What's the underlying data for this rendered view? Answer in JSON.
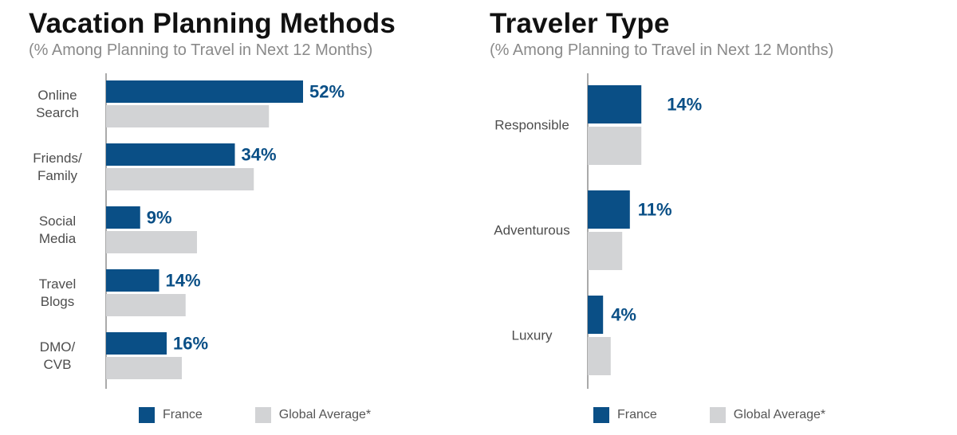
{
  "colors": {
    "france": "#0a4f86",
    "global": "#d2d3d5",
    "value_text": "#0a4f86"
  },
  "panels": [
    {
      "title": "Vacation Planning Methods",
      "subtitle": "(% Among Planning to Travel in Next 12 Months)",
      "legend": [
        "France",
        "Global Average*"
      ]
    },
    {
      "title": "Traveler Type",
      "subtitle": "(% Among Planning to Travel in Next 12 Months)",
      "legend": [
        "France",
        "Global Average*"
      ]
    }
  ],
  "chart_data": [
    {
      "type": "bar",
      "orientation": "horizontal",
      "title": "Vacation Planning Methods",
      "subtitle": "(% Among Planning to Travel in Next 12 Months)",
      "categories": [
        [
          "Online",
          "Search"
        ],
        [
          "Friends/",
          "Family"
        ],
        [
          "Social",
          "Media"
        ],
        [
          "Travel",
          "Blogs"
        ],
        [
          "DMO/",
          "CVB"
        ]
      ],
      "series": [
        {
          "name": "France",
          "values": [
            52,
            34,
            9,
            14,
            16
          ],
          "labels": [
            "52%",
            "34%",
            "9%",
            "14%",
            "16%"
          ]
        },
        {
          "name": "Global Average*",
          "values": [
            43,
            39,
            24,
            21,
            20
          ]
        }
      ],
      "xlim": [
        0,
        60
      ],
      "grid": false,
      "legend_position": "bottom"
    },
    {
      "type": "bar",
      "orientation": "horizontal",
      "title": "Traveler Type",
      "subtitle": "(% Among Planning to Travel in Next 12 Months)",
      "categories": [
        [
          "Responsible"
        ],
        [
          "Adventurous"
        ],
        [
          "Luxury"
        ]
      ],
      "series": [
        {
          "name": "France",
          "values": [
            14,
            11,
            4
          ],
          "labels": [
            "14%",
            "11%",
            "4%"
          ]
        },
        {
          "name": "Global Average*",
          "values": [
            14,
            9,
            6
          ]
        }
      ],
      "xlim": [
        0,
        40
      ],
      "grid": false,
      "legend_position": "bottom"
    }
  ]
}
